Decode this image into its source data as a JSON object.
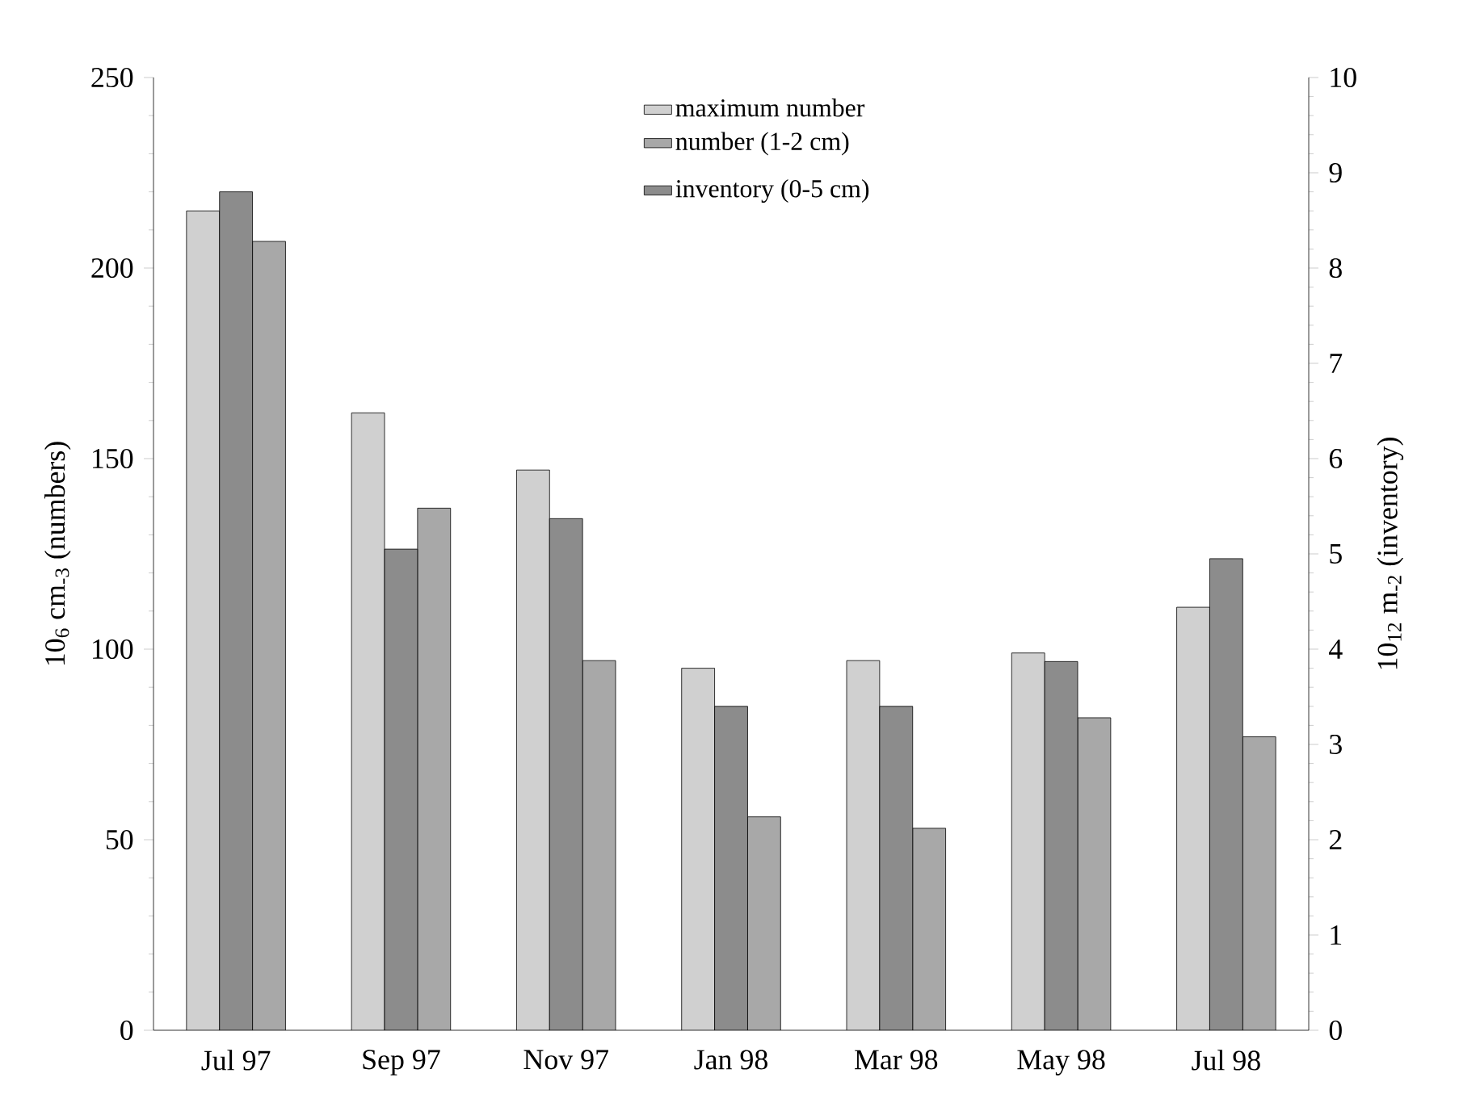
{
  "chart_data": {
    "type": "bar",
    "categories": [
      "Jul 97",
      "Sep 97",
      "Nov 97",
      "Jan 98",
      "Mar 98",
      "May 98",
      "Jul 98"
    ],
    "series": [
      {
        "name": "maximum number",
        "color": "#d0d0d0",
        "values": [
          215,
          162,
          147,
          95,
          97,
          99,
          111
        ]
      },
      {
        "name": "inventory (0-5 cm)",
        "color": "#8c8c8c",
        "axis": "y2",
        "values": [
          8.8,
          5.05,
          5.37,
          3.4,
          3.4,
          3.87,
          4.95
        ]
      },
      {
        "name": "number (1-2 cm)",
        "color": "#a8a8a8",
        "values": [
          207,
          137,
          97,
          56,
          53,
          82,
          77
        ]
      }
    ],
    "ylabel": "10$_{6}$ cm$_{-3}$ (numbers)",
    "y2label": "10$_{12}$ m$_{-2}$ (inventory)",
    "ylim": [
      0,
      250
    ],
    "yticks": [
      0,
      50,
      100,
      150,
      200,
      250
    ],
    "y2lim": [
      0,
      10
    ],
    "y2ticks": [
      0,
      1,
      2,
      3,
      4,
      5,
      6,
      7,
      8,
      9,
      10
    ],
    "legend": "top",
    "grid": false
  }
}
